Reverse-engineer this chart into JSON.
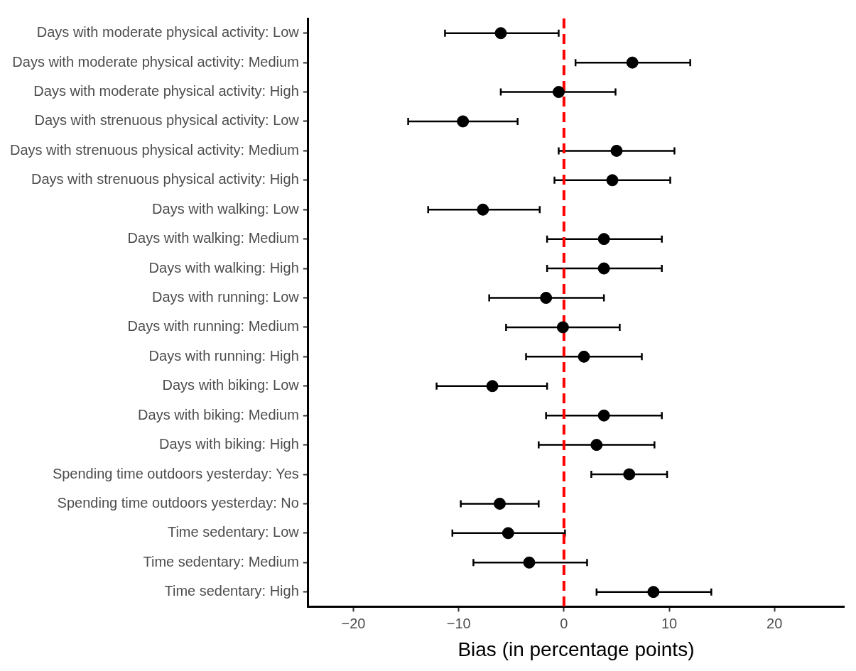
{
  "chart_data": {
    "type": "scatter",
    "xlabel": "Bias (in percentage points)",
    "categories": [
      "Days with moderate physical activity: Low",
      "Days with moderate physical activity: Medium",
      "Days with moderate physical activity: High",
      "Days with strenuous physical activity: Low",
      "Days with strenuous physical activity: Medium",
      "Days with strenuous physical activity: High",
      "Days with walking: Low",
      "Days with walking: Medium",
      "Days with walking: High",
      "Days with running: Low",
      "Days with running: Medium",
      "Days with running: High",
      "Days with biking: Low",
      "Days with biking: Medium",
      "Days with biking: High",
      "Spending time outdoors yesterday: Yes",
      "Spending time outdoors yesterday: No",
      "Time sedentary: Low",
      "Time sedentary: Medium",
      "Time sedentary: High"
    ],
    "values": [
      -6.0,
      6.5,
      -0.5,
      -9.6,
      5.0,
      4.6,
      -7.7,
      3.8,
      3.8,
      -1.7,
      -0.1,
      1.9,
      -6.8,
      3.8,
      3.1,
      6.2,
      -6.1,
      -5.3,
      -3.3,
      8.5
    ],
    "errors": [
      [
        -11.3,
        -0.5
      ],
      [
        1.1,
        12.0
      ],
      [
        -6.0,
        4.9
      ],
      [
        -14.8,
        -4.4
      ],
      [
        -0.5,
        10.5
      ],
      [
        -0.9,
        10.1
      ],
      [
        -12.9,
        -2.3
      ],
      [
        -1.6,
        9.3
      ],
      [
        -1.6,
        9.3
      ],
      [
        -7.1,
        3.8
      ],
      [
        -5.5,
        5.3
      ],
      [
        -3.6,
        7.4
      ],
      [
        -12.1,
        -1.6
      ],
      [
        -1.7,
        9.3
      ],
      [
        -2.4,
        8.6
      ],
      [
        2.6,
        9.8
      ],
      [
        -9.8,
        -2.4
      ],
      [
        -10.6,
        0.1
      ],
      [
        -8.6,
        2.2
      ],
      [
        3.1,
        14.0
      ]
    ],
    "color": "#000000",
    "marker": "circle",
    "orientation": "horizontal",
    "xlim": [
      -24.3,
      26.6
    ],
    "xticks": [
      {
        "value": -20,
        "label": "−20"
      },
      {
        "value": -10,
        "label": "−10"
      },
      0,
      10,
      20
    ],
    "ref_lines": [
      {
        "axis": "x",
        "value": 0,
        "color": "#ff0000",
        "line_style": "dashed"
      }
    ],
    "grid": false,
    "legend": false
  }
}
